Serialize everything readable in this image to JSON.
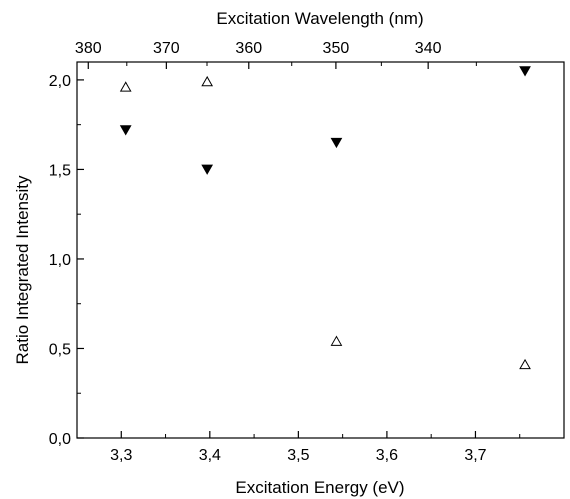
{
  "chart_data": {
    "type": "scatter",
    "title": "",
    "xlabel": "Excitation Energy (eV)",
    "ylabel": "Ratio Integrated Intensity",
    "x2label": "Excitation Wavelength (nm)",
    "xlim": [
      3.25,
      3.8
    ],
    "ylim": [
      0,
      2.1
    ],
    "xticks": [
      3.3,
      3.4,
      3.5,
      3.6,
      3.7
    ],
    "xtick_labels": [
      "3,3",
      "3,4",
      "3,5",
      "3,6",
      "3,7"
    ],
    "yticks": [
      0,
      0.5,
      1.0,
      1.5,
      2.0
    ],
    "ytick_labels": [
      "0,0",
      "0,5",
      "1,0",
      "1,5",
      "2,0"
    ],
    "x2ticks_nm": [
      380,
      370,
      360,
      350,
      340
    ],
    "x2tick_labels": [
      "380",
      "370",
      "360",
      "350",
      "340"
    ],
    "grid": false,
    "series": [
      {
        "marker": "triangle-down-filled",
        "color": "#000000",
        "x": [
          3.305,
          3.397,
          3.543,
          3.756
        ],
        "y": [
          1.72,
          1.5,
          1.65,
          2.05
        ]
      },
      {
        "marker": "triangle-up-open",
        "color": "#000000",
        "x": [
          3.305,
          3.397,
          3.543,
          3.756
        ],
        "y": [
          1.96,
          1.99,
          0.54,
          0.41
        ]
      }
    ]
  }
}
